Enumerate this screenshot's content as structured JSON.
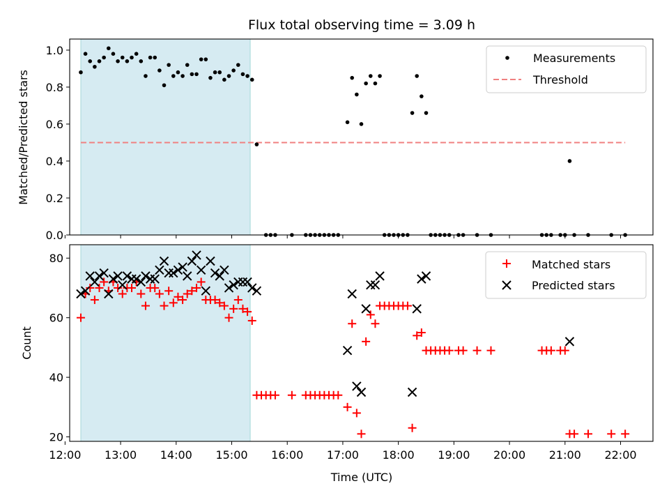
{
  "chart_data": [
    {
      "type": "scatter",
      "title": "Flux total observing time = 3.09 h",
      "xlabel": "",
      "ylabel": "Matched/Predicted stars",
      "xlim": [
        "12:05",
        "22:35"
      ],
      "ylim": [
        0.0,
        1.06
      ],
      "xticks": [
        "12:00",
        "13:00",
        "14:00",
        "15:00",
        "16:00",
        "17:00",
        "18:00",
        "19:00",
        "20:00",
        "21:00",
        "22:00"
      ],
      "yticks": [
        "0.0",
        "0.2",
        "0.4",
        "0.6",
        "0.8",
        "1.0"
      ],
      "shaded_interval": [
        "12:17",
        "15:20"
      ],
      "legend_position": "top-right",
      "series": [
        {
          "name": "Measurements",
          "marker": "dot",
          "color": "#000000",
          "points": [
            [
              "12:17",
              0.88
            ],
            [
              "12:22",
              0.98
            ],
            [
              "12:27",
              0.94
            ],
            [
              "12:32",
              0.91
            ],
            [
              "12:37",
              0.94
            ],
            [
              "12:42",
              0.96
            ],
            [
              "12:47",
              1.01
            ],
            [
              "12:52",
              0.98
            ],
            [
              "12:57",
              0.94
            ],
            [
              "13:02",
              0.96
            ],
            [
              "13:07",
              0.94
            ],
            [
              "13:12",
              0.96
            ],
            [
              "13:17",
              0.98
            ],
            [
              "13:22",
              0.94
            ],
            [
              "13:27",
              0.86
            ],
            [
              "13:32",
              0.96
            ],
            [
              "13:37",
              0.96
            ],
            [
              "13:42",
              0.89
            ],
            [
              "13:47",
              0.81
            ],
            [
              "13:52",
              0.92
            ],
            [
              "13:57",
              0.86
            ],
            [
              "14:02",
              0.88
            ],
            [
              "14:07",
              0.86
            ],
            [
              "14:12",
              0.92
            ],
            [
              "14:17",
              0.87
            ],
            [
              "14:22",
              0.87
            ],
            [
              "14:27",
              0.95
            ],
            [
              "14:32",
              0.95
            ],
            [
              "14:37",
              0.85
            ],
            [
              "14:42",
              0.88
            ],
            [
              "14:47",
              0.88
            ],
            [
              "14:52",
              0.84
            ],
            [
              "14:57",
              0.86
            ],
            [
              "15:02",
              0.89
            ],
            [
              "15:07",
              0.92
            ],
            [
              "15:12",
              0.87
            ],
            [
              "15:17",
              0.86
            ],
            [
              "15:22",
              0.84
            ],
            [
              "15:27",
              0.49
            ],
            [
              "15:37",
              0.0
            ],
            [
              "15:42",
              0.0
            ],
            [
              "15:47",
              0.0
            ],
            [
              "16:05",
              0.0
            ],
            [
              "16:20",
              0.0
            ],
            [
              "16:25",
              0.0
            ],
            [
              "16:30",
              0.0
            ],
            [
              "16:35",
              0.0
            ],
            [
              "16:40",
              0.0
            ],
            [
              "16:45",
              0.0
            ],
            [
              "16:50",
              0.0
            ],
            [
              "16:55",
              0.0
            ],
            [
              "17:05",
              0.61
            ],
            [
              "17:10",
              0.85
            ],
            [
              "17:15",
              0.76
            ],
            [
              "17:20",
              0.6
            ],
            [
              "17:25",
              0.82
            ],
            [
              "17:30",
              0.86
            ],
            [
              "17:35",
              0.82
            ],
            [
              "17:40",
              0.86
            ],
            [
              "17:45",
              0.0
            ],
            [
              "17:50",
              0.0
            ],
            [
              "17:55",
              0.0
            ],
            [
              "18:00",
              0.0
            ],
            [
              "18:05",
              0.0
            ],
            [
              "18:10",
              0.0
            ],
            [
              "18:15",
              0.66
            ],
            [
              "18:20",
              0.86
            ],
            [
              "18:25",
              0.75
            ],
            [
              "18:30",
              0.66
            ],
            [
              "18:35",
              0.0
            ],
            [
              "18:40",
              0.0
            ],
            [
              "18:45",
              0.0
            ],
            [
              "18:50",
              0.0
            ],
            [
              "18:55",
              0.0
            ],
            [
              "19:05",
              0.0
            ],
            [
              "19:10",
              0.0
            ],
            [
              "19:25",
              0.0
            ],
            [
              "19:40",
              0.0
            ],
            [
              "20:35",
              0.0
            ],
            [
              "20:40",
              0.0
            ],
            [
              "20:45",
              0.0
            ],
            [
              "20:55",
              0.0
            ],
            [
              "21:00",
              0.0
            ],
            [
              "21:05",
              0.4
            ],
            [
              "21:10",
              0.0
            ],
            [
              "21:25",
              0.0
            ],
            [
              "21:50",
              0.0
            ],
            [
              "22:05",
              0.0
            ]
          ]
        },
        {
          "name": "Threshold",
          "marker": "dashed-line",
          "color": "#f08080",
          "points": [
            [
              "12:17",
              0.5
            ],
            [
              "22:05",
              0.5
            ]
          ]
        }
      ]
    },
    {
      "type": "scatter",
      "title": "",
      "xlabel": "Time (UTC)",
      "ylabel": "Count",
      "xlim": [
        "12:05",
        "22:35"
      ],
      "ylim": [
        18.5,
        84.5
      ],
      "xticks": [
        "12:00",
        "13:00",
        "14:00",
        "15:00",
        "16:00",
        "17:00",
        "18:00",
        "19:00",
        "20:00",
        "21:00",
        "22:00"
      ],
      "yticks": [
        "20",
        "40",
        "60",
        "80"
      ],
      "shaded_interval": [
        "12:17",
        "15:20"
      ],
      "legend_position": "top-right",
      "series": [
        {
          "name": "Matched stars",
          "marker": "plus",
          "color": "#ff0000",
          "points": [
            [
              "12:17",
              60
            ],
            [
              "12:22",
              68
            ],
            [
              "12:27",
              70
            ],
            [
              "12:32",
              66
            ],
            [
              "12:37",
              70
            ],
            [
              "12:42",
              72
            ],
            [
              "12:47",
              69
            ],
            [
              "12:52",
              72
            ],
            [
              "12:57",
              70
            ],
            [
              "13:02",
              68
            ],
            [
              "13:07",
              70
            ],
            [
              "13:12",
              70
            ],
            [
              "13:17",
              72
            ],
            [
              "13:22",
              68
            ],
            [
              "13:27",
              64
            ],
            [
              "13:32",
              70
            ],
            [
              "13:37",
              70
            ],
            [
              "13:42",
              68
            ],
            [
              "13:47",
              64
            ],
            [
              "13:52",
              69
            ],
            [
              "13:57",
              65
            ],
            [
              "14:02",
              67
            ],
            [
              "14:07",
              66
            ],
            [
              "14:12",
              68
            ],
            [
              "14:17",
              69
            ],
            [
              "14:22",
              70
            ],
            [
              "14:27",
              72
            ],
            [
              "14:32",
              66
            ],
            [
              "14:37",
              66
            ],
            [
              "14:42",
              66
            ],
            [
              "14:47",
              65
            ],
            [
              "14:52",
              64
            ],
            [
              "14:57",
              60
            ],
            [
              "15:02",
              63
            ],
            [
              "15:07",
              66
            ],
            [
              "15:12",
              63
            ],
            [
              "15:17",
              62
            ],
            [
              "15:22",
              59
            ],
            [
              "15:27",
              34
            ],
            [
              "15:32",
              34
            ],
            [
              "15:37",
              34
            ],
            [
              "15:42",
              34
            ],
            [
              "15:47",
              34
            ],
            [
              "16:05",
              34
            ],
            [
              "16:20",
              34
            ],
            [
              "16:25",
              34
            ],
            [
              "16:30",
              34
            ],
            [
              "16:35",
              34
            ],
            [
              "16:40",
              34
            ],
            [
              "16:45",
              34
            ],
            [
              "16:50",
              34
            ],
            [
              "16:55",
              34
            ],
            [
              "17:05",
              30
            ],
            [
              "17:10",
              58
            ],
            [
              "17:15",
              28
            ],
            [
              "17:20",
              21
            ],
            [
              "17:25",
              52
            ],
            [
              "17:30",
              61
            ],
            [
              "17:35",
              58
            ],
            [
              "17:40",
              64
            ],
            [
              "17:45",
              64
            ],
            [
              "17:50",
              64
            ],
            [
              "17:55",
              64
            ],
            [
              "18:00",
              64
            ],
            [
              "18:05",
              64
            ],
            [
              "18:10",
              64
            ],
            [
              "18:15",
              23
            ],
            [
              "18:20",
              54
            ],
            [
              "18:25",
              55
            ],
            [
              "18:30",
              49
            ],
            [
              "18:35",
              49
            ],
            [
              "18:40",
              49
            ],
            [
              "18:45",
              49
            ],
            [
              "18:50",
              49
            ],
            [
              "18:55",
              49
            ],
            [
              "19:05",
              49
            ],
            [
              "19:10",
              49
            ],
            [
              "19:25",
              49
            ],
            [
              "19:40",
              49
            ],
            [
              "20:35",
              49
            ],
            [
              "20:40",
              49
            ],
            [
              "20:45",
              49
            ],
            [
              "20:55",
              49
            ],
            [
              "21:00",
              49
            ],
            [
              "21:05",
              21
            ],
            [
              "21:10",
              21
            ],
            [
              "21:25",
              21
            ],
            [
              "21:50",
              21
            ],
            [
              "22:05",
              21
            ]
          ]
        },
        {
          "name": "Predicted stars",
          "marker": "x",
          "color": "#000000",
          "points": [
            [
              "12:17",
              68
            ],
            [
              "12:22",
              69
            ],
            [
              "12:27",
              74
            ],
            [
              "12:32",
              72
            ],
            [
              "12:37",
              74
            ],
            [
              "12:42",
              75
            ],
            [
              "12:47",
              68
            ],
            [
              "12:52",
              73
            ],
            [
              "12:57",
              74
            ],
            [
              "13:02",
              71
            ],
            [
              "13:07",
              74
            ],
            [
              "13:12",
              73
            ],
            [
              "13:17",
              73
            ],
            [
              "13:22",
              72
            ],
            [
              "13:27",
              74
            ],
            [
              "13:32",
              73
            ],
            [
              "13:37",
              73
            ],
            [
              "13:42",
              76
            ],
            [
              "13:47",
              79
            ],
            [
              "13:52",
              75
            ],
            [
              "13:57",
              75
            ],
            [
              "14:02",
              76
            ],
            [
              "14:07",
              77
            ],
            [
              "14:12",
              74
            ],
            [
              "14:17",
              79
            ],
            [
              "14:22",
              81
            ],
            [
              "14:27",
              76
            ],
            [
              "14:32",
              69
            ],
            [
              "14:37",
              79
            ],
            [
              "14:42",
              75
            ],
            [
              "14:47",
              74
            ],
            [
              "14:52",
              76
            ],
            [
              "14:57",
              70
            ],
            [
              "15:02",
              71
            ],
            [
              "15:07",
              72
            ],
            [
              "15:12",
              72
            ],
            [
              "15:17",
              72
            ],
            [
              "15:22",
              70
            ],
            [
              "15:27",
              69
            ],
            [
              "17:05",
              49
            ],
            [
              "17:10",
              68
            ],
            [
              "17:15",
              37
            ],
            [
              "17:20",
              35
            ],
            [
              "17:25",
              63
            ],
            [
              "17:30",
              71
            ],
            [
              "17:35",
              71
            ],
            [
              "17:40",
              74
            ],
            [
              "18:15",
              35
            ],
            [
              "18:20",
              63
            ],
            [
              "18:25",
              73
            ],
            [
              "18:30",
              74
            ],
            [
              "21:05",
              52
            ]
          ]
        }
      ]
    }
  ]
}
